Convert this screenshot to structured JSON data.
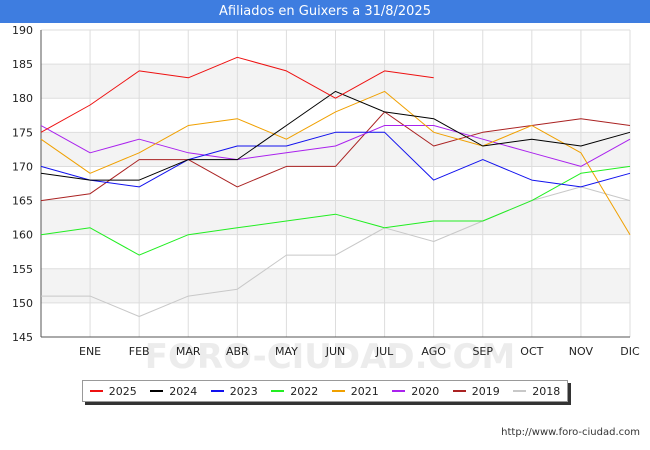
{
  "chart_data": {
    "type": "line",
    "title": "Afiliados en Guixers a 31/8/2025",
    "source": "http://www.foro-ciudad.com",
    "watermark": "FORO-CIUDAD.COM",
    "categories": [
      "",
      "ENE",
      "FEB",
      "MAR",
      "ABR",
      "MAY",
      "JUN",
      "JUL",
      "AGO",
      "SEP",
      "OCT",
      "NOV",
      "DIC"
    ],
    "ylim": [
      145,
      190
    ],
    "yticks": [
      145,
      150,
      155,
      160,
      165,
      170,
      175,
      180,
      185,
      190
    ],
    "grid": true,
    "legend_position": "bottom",
    "series": [
      {
        "name": "2025",
        "color": "#ee1111",
        "values": [
          175,
          179,
          184,
          183,
          186,
          184,
          180,
          184,
          183,
          null,
          null,
          null,
          null
        ]
      },
      {
        "name": "2024",
        "color": "#000000",
        "values": [
          169,
          168,
          168,
          171,
          171,
          176,
          181,
          178,
          177,
          173,
          174,
          173,
          175
        ]
      },
      {
        "name": "2023",
        "color": "#1111ee",
        "values": [
          170,
          168,
          167,
          171,
          173,
          173,
          175,
          175,
          168,
          171,
          168,
          167,
          169
        ]
      },
      {
        "name": "2022",
        "color": "#22ee22",
        "values": [
          160,
          161,
          157,
          160,
          161,
          162,
          163,
          161,
          162,
          162,
          165,
          169,
          170
        ]
      },
      {
        "name": "2021",
        "color": "#f0a000",
        "values": [
          174,
          169,
          172,
          176,
          177,
          174,
          178,
          181,
          175,
          173,
          176,
          172,
          160
        ]
      },
      {
        "name": "2020",
        "color": "#aa22ee",
        "values": [
          176,
          172,
          174,
          172,
          171,
          172,
          173,
          176,
          176,
          174,
          172,
          170,
          174
        ]
      },
      {
        "name": "2019",
        "color": "#aa2222",
        "values": [
          165,
          166,
          171,
          171,
          167,
          170,
          170,
          178,
          173,
          175,
          176,
          177,
          176
        ]
      },
      {
        "name": "2018",
        "color": "#c8c8c8",
        "values": [
          151,
          151,
          148,
          151,
          152,
          157,
          157,
          161,
          159,
          162,
          165,
          167,
          165
        ]
      }
    ]
  }
}
